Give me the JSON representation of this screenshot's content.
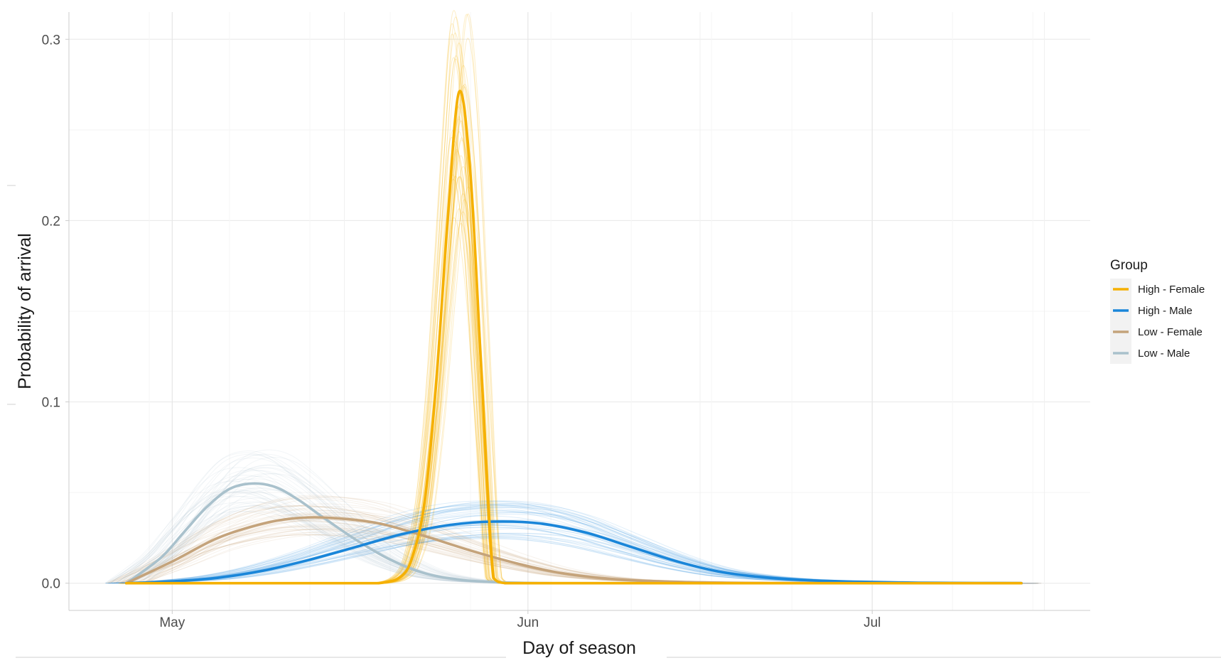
{
  "chart_data": {
    "type": "line",
    "title": "",
    "xlabel": "Day of season",
    "ylabel": "Probability of arrival",
    "x_unit": "date",
    "xlim": [
      "2021-04-22",
      "2021-07-20"
    ],
    "ylim": [
      -0.015,
      0.315
    ],
    "y_ticks": [
      0.0,
      0.1,
      0.2,
      0.3
    ],
    "y_tick_labels": [
      "0.0",
      "0.1",
      "0.2",
      "0.3"
    ],
    "x_ticks": [
      "2021-05-01",
      "2021-06-01",
      "2021-07-01"
    ],
    "x_tick_labels": [
      "May",
      "Jun",
      "Jul"
    ],
    "grid": true,
    "legend": {
      "title": "Group",
      "position": "right"
    },
    "series": [
      {
        "name": "High - Female",
        "color": "#F5B000",
        "x": [
          "2021-04-27",
          "2021-05-15",
          "2021-05-19",
          "2021-05-21",
          "2021-05-22",
          "2021-05-23",
          "2021-05-24",
          "2021-05-25",
          "2021-05-26",
          "2021-05-27",
          "2021-05-28",
          "2021-05-29",
          "2021-05-30",
          "2021-05-31",
          "2021-06-09",
          "2021-07-14"
        ],
        "y": [
          0.0,
          0.0,
          0.0,
          0.004,
          0.016,
          0.045,
          0.11,
          0.2,
          0.271,
          0.225,
          0.11,
          0.003,
          0.0,
          0.0,
          0.0,
          0.0
        ]
      },
      {
        "name": "High - Male",
        "color": "#1A86D9",
        "x": [
          "2021-04-27",
          "2021-05-01",
          "2021-05-05",
          "2021-05-09",
          "2021-05-13",
          "2021-05-17",
          "2021-05-21",
          "2021-05-25",
          "2021-05-29",
          "2021-06-02",
          "2021-06-06",
          "2021-06-10",
          "2021-06-14",
          "2021-06-18",
          "2021-06-22",
          "2021-06-26",
          "2021-06-30",
          "2021-07-05",
          "2021-07-10",
          "2021-07-14"
        ],
        "y": [
          0.0,
          0.001,
          0.003,
          0.007,
          0.013,
          0.02,
          0.027,
          0.032,
          0.034,
          0.033,
          0.028,
          0.02,
          0.012,
          0.006,
          0.003,
          0.0015,
          0.0008,
          0.0003,
          0.0001,
          0.0
        ]
      },
      {
        "name": "Low - Female",
        "color": "#C4A37B",
        "x": [
          "2021-04-27",
          "2021-05-01",
          "2021-05-05",
          "2021-05-09",
          "2021-05-12",
          "2021-05-15",
          "2021-05-19",
          "2021-05-23",
          "2021-05-27",
          "2021-05-31",
          "2021-06-04",
          "2021-06-09",
          "2021-06-15",
          "2021-06-22",
          "2021-07-01",
          "2021-07-14"
        ],
        "y": [
          0.0,
          0.012,
          0.025,
          0.033,
          0.036,
          0.036,
          0.033,
          0.026,
          0.018,
          0.011,
          0.0055,
          0.002,
          0.0006,
          0.0001,
          0.0,
          0.0
        ]
      },
      {
        "name": "Low - Male",
        "color": "#A9C1CC",
        "x": [
          "2021-04-27",
          "2021-04-30",
          "2021-05-02",
          "2021-05-04",
          "2021-05-06",
          "2021-05-08",
          "2021-05-10",
          "2021-05-12",
          "2021-05-14",
          "2021-05-17",
          "2021-05-20",
          "2021-05-23",
          "2021-05-26",
          "2021-05-29",
          "2021-06-02",
          "2021-06-10",
          "2021-07-14"
        ],
        "y": [
          0.0,
          0.014,
          0.028,
          0.042,
          0.052,
          0.055,
          0.053,
          0.046,
          0.037,
          0.024,
          0.013,
          0.0055,
          0.002,
          0.0006,
          0.0001,
          0.0,
          0.0
        ]
      }
    ]
  }
}
